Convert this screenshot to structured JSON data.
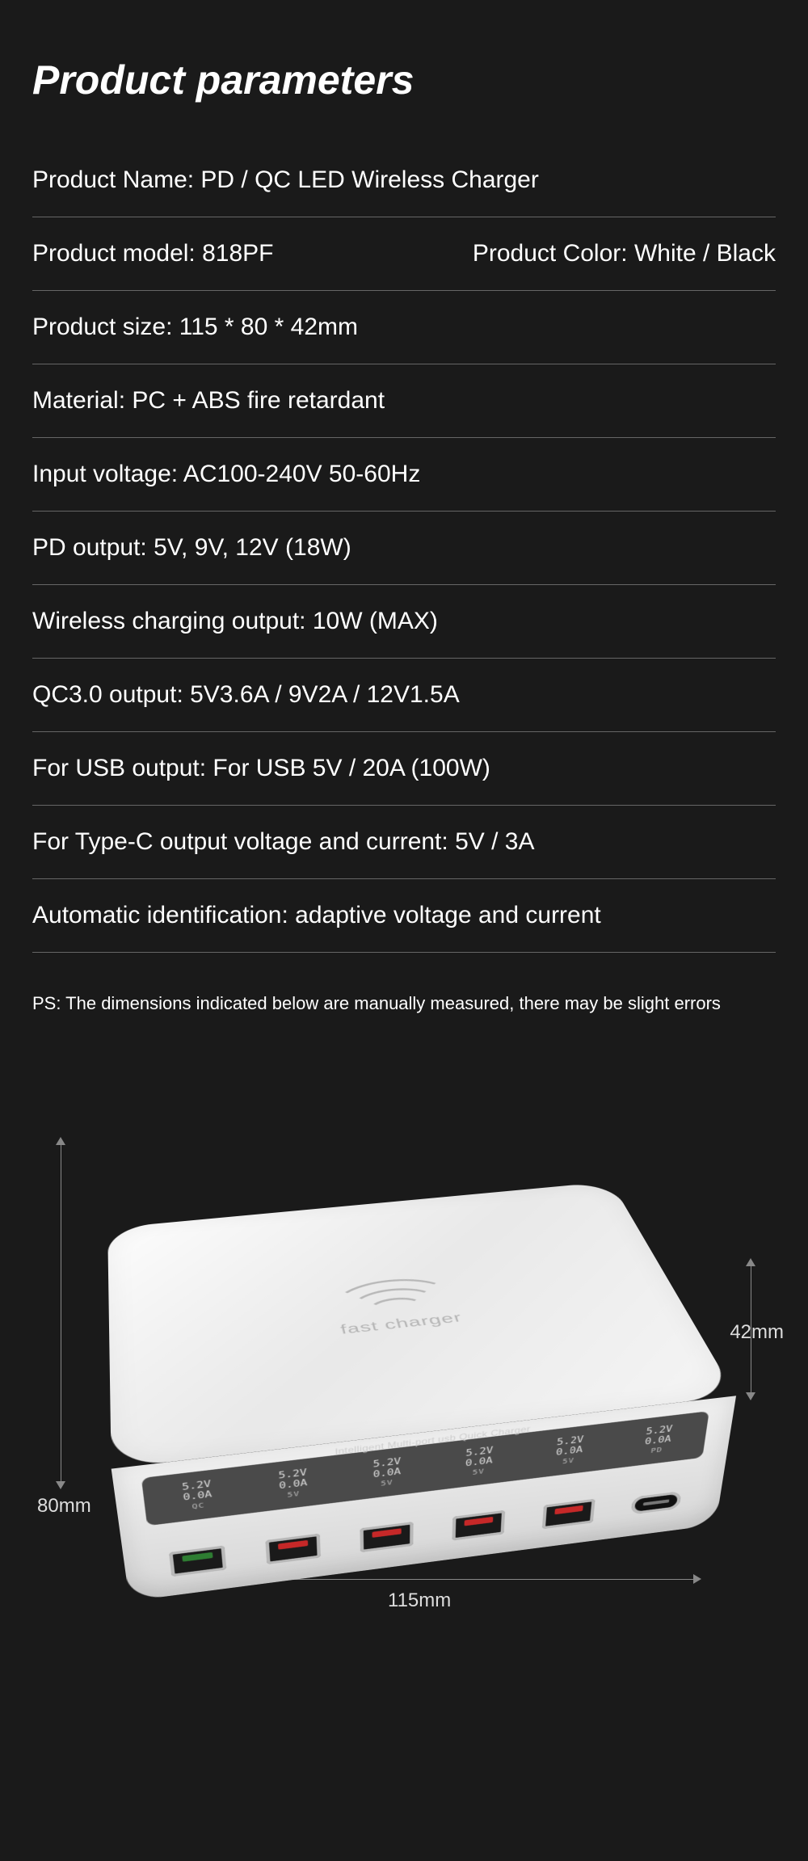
{
  "title": "Product parameters",
  "specs": {
    "name": "Product Name: PD / QC LED Wireless Charger",
    "model": "Product model: 818PF",
    "color": "Product Color: White / Black",
    "size": "Product size: 115 * 80 * 42mm",
    "material": "Material: PC + ABS fire retardant",
    "input": "Input voltage: AC100-240V   50-60Hz",
    "pd": "PD output: 5V, 9V, 12V (18W)",
    "wireless": "Wireless charging output: 10W (MAX)",
    "qc": "QC3.0 output: 5V3.6A / 9V2A / 12V1.5A",
    "usb": "For USB output: For USB 5V / 20A (100W)",
    "typec": "For Type-C output voltage and current: 5V / 3A",
    "auto": "Automatic identification: adaptive voltage and current"
  },
  "ps": "PS: The dimensions indicated below are manually measured, there may be slight errors",
  "dims": {
    "d80": "80mm",
    "d115": "115mm",
    "d42": "42mm"
  },
  "device": {
    "top_label": "fast charger",
    "lcd_banner": "Intelligent Multi-port usb Quick Charger",
    "lcd": [
      {
        "v": "5.2V",
        "a": "0.0A",
        "lbl": "QC"
      },
      {
        "v": "5.2V",
        "a": "0.0A",
        "lbl": "5V"
      },
      {
        "v": "5.2V",
        "a": "0.0A",
        "lbl": "5V"
      },
      {
        "v": "5.2V",
        "a": "0.0A",
        "lbl": "5V"
      },
      {
        "v": "5.2V",
        "a": "0.0A",
        "lbl": "5V"
      },
      {
        "v": "5.2V",
        "a": "0.0A",
        "lbl": "PD"
      }
    ]
  },
  "colors": {
    "bg": "#1a1a1a",
    "text": "#ffffff",
    "divider": "#666666",
    "dim_line": "#888888",
    "device_top": "#f5f5f5",
    "lcd_bg": "#4a4a4a",
    "usb_green": "#2e7d32",
    "usb_red": "#c62828"
  }
}
